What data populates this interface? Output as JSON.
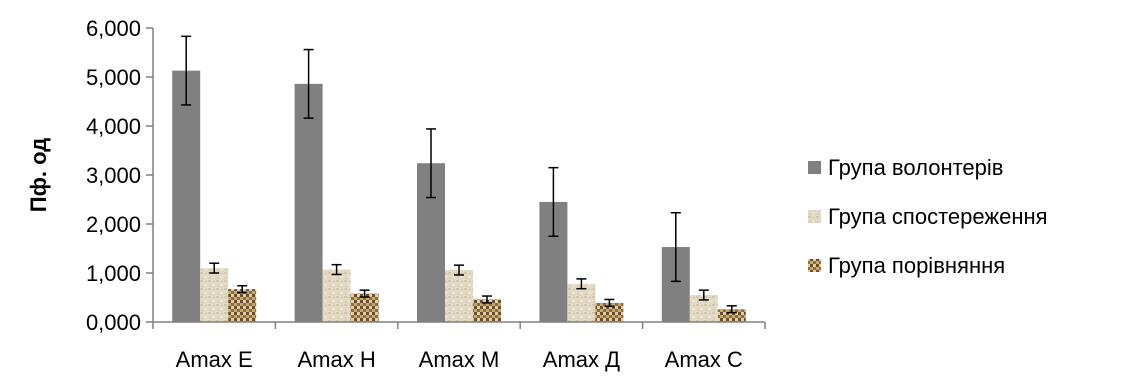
{
  "chart_data": {
    "type": "bar",
    "ylabel": "Пф. од",
    "xlabel": "",
    "ylim": [
      0,
      6
    ],
    "yticks": [
      0,
      1,
      2,
      3,
      4,
      5,
      6
    ],
    "ytick_labels": [
      "0,000",
      "1,000",
      "2,000",
      "3,000",
      "4,000",
      "5,000",
      "6,000"
    ],
    "categories": [
      "Amax E",
      "Amax H",
      "Amax M",
      "Amax Д",
      "Amax C"
    ],
    "series": [
      {
        "name": "Група волонтерів",
        "values": [
          5.13,
          4.86,
          3.24,
          2.45,
          1.53
        ],
        "errors": [
          0.7,
          0.7,
          0.7,
          0.7,
          0.7
        ],
        "color": "#808080",
        "pattern": "solid"
      },
      {
        "name": "Група спостереження",
        "values": [
          1.1,
          1.07,
          1.06,
          0.78,
          0.55
        ],
        "errors": [
          0.1,
          0.1,
          0.1,
          0.1,
          0.1
        ],
        "color": "#ddd3bd",
        "pattern": "parchment"
      },
      {
        "name": "Група порівняння",
        "values": [
          0.67,
          0.58,
          0.46,
          0.39,
          0.26
        ],
        "errors": [
          0.07,
          0.07,
          0.07,
          0.07,
          0.07
        ],
        "color": "#b09060",
        "pattern": "checker"
      }
    ],
    "grid": false,
    "legend_position": "right"
  }
}
